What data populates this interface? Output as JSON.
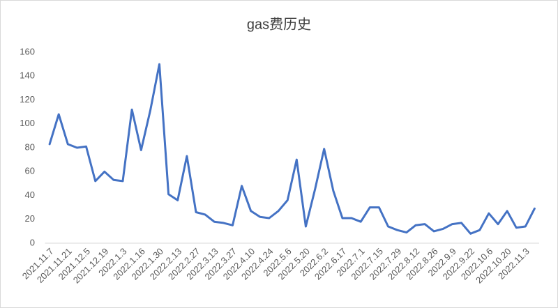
{
  "chart_data": {
    "type": "line",
    "title": "gas费历史",
    "categories": [
      "2021.11.7",
      null,
      "2021.11.21",
      null,
      "2021.12.5",
      null,
      "2021.12.19",
      null,
      "2022.1.3",
      null,
      "2022.1.16",
      null,
      "2022.1.30",
      null,
      "2022.2.13",
      null,
      "2022.2.27",
      null,
      "2022.3.13",
      null,
      "2022.3.27",
      null,
      "2022.4.10",
      null,
      "2022.4.24",
      null,
      "2022.5.6",
      null,
      "2022.5.20",
      null,
      "2022.6.2",
      null,
      "2022.6.17",
      null,
      "2022.7.1",
      null,
      "2022.7.15",
      null,
      "2022.7.29",
      null,
      "2022.8.12",
      null,
      "2022.8.26",
      null,
      "2022.9.9",
      null,
      "2022.9.22",
      null,
      "2022.10.6",
      null,
      "2022.10.20",
      null,
      "2022.11.3",
      null
    ],
    "values": [
      83,
      108,
      83,
      80,
      81,
      52,
      60,
      53,
      52,
      112,
      78,
      111,
      150,
      41,
      36,
      73,
      26,
      24,
      18,
      17,
      15,
      48,
      27,
      22,
      21,
      27,
      36,
      70,
      14,
      45,
      79,
      44,
      21,
      21,
      18,
      30,
      30,
      14,
      11,
      9,
      15,
      16,
      10,
      12,
      16,
      17,
      8,
      11,
      25,
      16,
      27,
      13,
      14,
      29
    ],
    "color": "#4472c4",
    "ylim": [
      0,
      160
    ],
    "yticks": [
      0,
      20,
      40,
      60,
      80,
      100,
      120,
      140,
      160
    ],
    "grid": false
  }
}
